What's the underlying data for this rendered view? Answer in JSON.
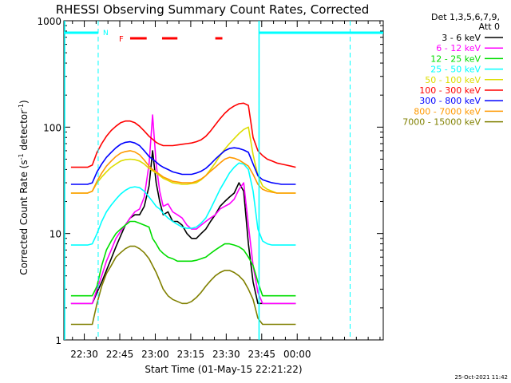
{
  "chart_data": {
    "type": "line",
    "title": "RHESSI Observing Summary Count Rates, Corrected",
    "xlabel": "Start Time (01-May-15 22:21:22)",
    "ylabel": "Corrected Count Rate (s",
    "ylabel_sup1": "-1",
    "ylabel_mid": " detector",
    "ylabel_sup2": "-1",
    "ylabel_end": ")",
    "yscale": "log",
    "ylim": [
      1,
      1000
    ],
    "xlim": [
      0,
      135
    ],
    "x_unit": "minutes since 22:21:22",
    "x_ticks": [
      {
        "label": "22:30",
        "x": 8.63
      },
      {
        "label": "22:45",
        "x": 23.63
      },
      {
        "label": "23:00",
        "x": 38.63
      },
      {
        "label": "23:15",
        "x": 53.63
      },
      {
        "label": "23:30",
        "x": 68.63
      },
      {
        "label": "23:45",
        "x": 83.63
      },
      {
        "label": "00:00",
        "x": 98.63
      }
    ],
    "y_ticks": [
      {
        "label": "1",
        "value": 1
      },
      {
        "label": "10",
        "value": 10
      },
      {
        "label": "100",
        "value": 100
      },
      {
        "label": "1000",
        "value": 1000
      }
    ],
    "legend_title_1": "Det 1,3,5,6,7,9,",
    "legend_title_2": "Att 0",
    "legend_position": "top-right",
    "series": [
      {
        "name": "3 - 6 keV",
        "color": "#000000",
        "x": [
          3,
          10,
          12,
          14,
          16,
          18,
          20,
          22,
          24,
          26,
          28,
          30,
          32,
          34,
          36,
          37.5,
          39,
          40.5,
          42,
          44,
          46,
          48,
          50,
          52,
          54,
          56,
          58,
          60,
          62,
          64,
          66,
          68,
          70,
          72,
          74,
          76,
          78,
          80,
          82,
          84,
          86,
          88,
          90,
          92,
          94,
          96,
          98
        ],
        "values": [
          2.2,
          2.2,
          2.2,
          2.8,
          3.5,
          4.5,
          5.8,
          7.5,
          9.5,
          12,
          14,
          15,
          15,
          18,
          28,
          60,
          30,
          20,
          15,
          16,
          13,
          13,
          12,
          10,
          9,
          9,
          10,
          11,
          13,
          15,
          18,
          20,
          22,
          24,
          30,
          25,
          8,
          3.5,
          2.2,
          2.2,
          2.2,
          2.2,
          2.2,
          2.2,
          2.2,
          2.2,
          2.2
        ]
      },
      {
        "name": "6 - 12 keV",
        "color": "#ff00ff",
        "x": [
          3,
          10,
          12,
          14,
          16,
          18,
          20,
          22,
          24,
          26,
          28,
          30,
          32,
          34,
          36,
          37.5,
          39,
          40.5,
          42,
          44,
          46,
          48,
          50,
          52,
          54,
          56,
          58,
          60,
          62,
          64,
          66,
          68,
          70,
          72,
          74,
          76,
          78,
          80,
          82,
          84,
          86,
          88,
          90,
          92,
          94,
          96,
          98
        ],
        "values": [
          2.2,
          2.2,
          2.2,
          3,
          4,
          5.5,
          7,
          9,
          10.5,
          12,
          14,
          16,
          17,
          22,
          45,
          130,
          45,
          25,
          18,
          19,
          16,
          15,
          14,
          12,
          11,
          11,
          12,
          13,
          14,
          15,
          17,
          18,
          19,
          21,
          26,
          30,
          12,
          5,
          2.8,
          2.2,
          2.2,
          2.2,
          2.2,
          2.2,
          2.2,
          2.2,
          2.2
        ]
      },
      {
        "name": "12 - 25 keV",
        "color": "#00dd00",
        "x": [
          3,
          10,
          12,
          14,
          16,
          18,
          20,
          22,
          24,
          26,
          28,
          30,
          32,
          34,
          36,
          37.5,
          39,
          40.5,
          42,
          44,
          46,
          48,
          50,
          52,
          54,
          56,
          58,
          60,
          62,
          64,
          66,
          68,
          70,
          72,
          74,
          76,
          78,
          80,
          82,
          84,
          86,
          88,
          90,
          92,
          94,
          96,
          98
        ],
        "values": [
          2.6,
          2.6,
          2.6,
          3.2,
          5,
          7,
          8.5,
          10,
          11,
          12,
          13,
          13,
          12.5,
          12,
          11.5,
          9,
          8,
          7,
          6.5,
          6,
          5.8,
          5.5,
          5.5,
          5.5,
          5.5,
          5.6,
          5.8,
          6,
          6.5,
          7,
          7.5,
          8,
          8,
          7.8,
          7.5,
          7,
          6,
          5,
          3.5,
          2.6,
          2.6,
          2.6,
          2.6,
          2.6,
          2.6,
          2.6,
          2.6
        ]
      },
      {
        "name": "25 - 50 keV",
        "color": "#00ffff",
        "x": [
          3,
          10,
          12,
          14,
          16,
          18,
          20,
          22,
          24,
          26,
          28,
          30,
          32,
          34,
          36,
          37.5,
          39,
          40.5,
          42,
          44,
          46,
          48,
          50,
          52,
          54,
          56,
          58,
          60,
          62,
          64,
          66,
          68,
          70,
          72,
          74,
          76,
          78,
          80,
          82,
          84,
          86,
          88,
          90,
          92,
          94,
          96,
          98
        ],
        "values": [
          7.8,
          7.8,
          8,
          10,
          13,
          16,
          18.5,
          21,
          23.5,
          25.5,
          27,
          27.5,
          27,
          25,
          22,
          20,
          18,
          17,
          15.5,
          14,
          13,
          12.2,
          11.5,
          11.2,
          11.2,
          11.5,
          12.5,
          14,
          17,
          21,
          26,
          31,
          37,
          42,
          46,
          45,
          40,
          25,
          11,
          8.5,
          8,
          7.8,
          7.8,
          7.8,
          7.8,
          7.8,
          7.8
        ]
      },
      {
        "name": "50 - 100 keV",
        "color": "#dddd00",
        "x": [
          3,
          10,
          12,
          14,
          16,
          18,
          20,
          22,
          24,
          26,
          28,
          30,
          32,
          34,
          36,
          37.5,
          39,
          40.5,
          42,
          44,
          46,
          48,
          50,
          52,
          54,
          56,
          58,
          60,
          62,
          64,
          66,
          68,
          70,
          72,
          74,
          76,
          78,
          80,
          82,
          84,
          86,
          88,
          90,
          92,
          94,
          96,
          98
        ],
        "values": [
          24,
          24,
          25,
          30,
          34,
          38,
          42,
          45,
          48,
          49.5,
          50,
          49.5,
          48,
          45,
          41,
          39,
          37,
          35,
          33,
          31.5,
          30,
          29.5,
          29,
          29,
          29.5,
          30,
          32,
          35,
          40,
          46,
          54,
          62,
          70,
          78,
          87,
          95,
          100,
          55,
          35,
          28,
          26,
          25,
          24,
          24,
          24,
          24,
          24
        ]
      },
      {
        "name": "100 - 300 keV",
        "color": "#ff0000",
        "x": [
          3,
          10,
          12,
          14,
          16,
          18,
          20,
          22,
          24,
          26,
          28,
          30,
          32,
          34,
          36,
          37.5,
          39,
          40.5,
          42,
          44,
          46,
          48,
          50,
          52,
          54,
          56,
          58,
          60,
          62,
          64,
          66,
          68,
          70,
          72,
          74,
          76,
          78,
          80,
          82,
          84,
          86,
          88,
          90,
          92,
          94,
          96,
          98
        ],
        "values": [
          42,
          42,
          44,
          58,
          70,
          82,
          93,
          102,
          110,
          114,
          114,
          110,
          102,
          92,
          82,
          77,
          72,
          69,
          67,
          67,
          67,
          68,
          69,
          70,
          71,
          73,
          76,
          82,
          92,
          105,
          120,
          135,
          148,
          158,
          166,
          168,
          160,
          80,
          60,
          54,
          50,
          48,
          46,
          45,
          44,
          43,
          42
        ]
      },
      {
        "name": "300 - 800 keV",
        "color": "#0000ff",
        "x": [
          3,
          10,
          12,
          14,
          16,
          18,
          20,
          22,
          24,
          26,
          28,
          30,
          32,
          34,
          36,
          37.5,
          39,
          40.5,
          42,
          44,
          46,
          48,
          50,
          52,
          54,
          56,
          58,
          60,
          62,
          64,
          66,
          68,
          70,
          72,
          74,
          76,
          78,
          80,
          82,
          84,
          86,
          88,
          90,
          92,
          94,
          96,
          98
        ],
        "values": [
          29,
          29,
          30,
          38,
          45,
          52,
          58,
          64,
          69,
          72,
          73,
          71,
          67,
          60,
          53,
          50,
          47,
          44,
          42,
          40,
          38,
          37,
          36,
          36,
          36,
          37,
          38.5,
          41,
          45,
          50,
          55,
          60,
          63,
          64,
          63,
          61,
          58,
          45,
          35,
          32,
          31,
          30,
          29.5,
          29,
          29,
          29,
          29
        ]
      },
      {
        "name": "800 - 7000 keV",
        "color": "#ff9900",
        "x": [
          3,
          10,
          12,
          14,
          16,
          18,
          20,
          22,
          24,
          26,
          28,
          30,
          32,
          34,
          36,
          37.5,
          39,
          40.5,
          42,
          44,
          46,
          48,
          50,
          52,
          54,
          56,
          58,
          60,
          62,
          64,
          66,
          68,
          70,
          72,
          74,
          76,
          78,
          80,
          82,
          84,
          86,
          88,
          90,
          92,
          94,
          96,
          98
        ],
        "values": [
          24,
          24,
          25,
          31,
          37,
          43,
          48,
          53,
          57,
          59,
          60,
          58.5,
          55,
          49,
          43,
          40,
          38,
          36,
          34,
          32.5,
          31,
          30.5,
          30,
          30,
          30,
          31,
          32.5,
          35,
          38.5,
          42,
          46,
          50,
          52,
          51,
          49,
          46,
          43,
          36,
          29,
          26,
          25,
          24.5,
          24,
          24,
          24,
          24,
          24
        ]
      },
      {
        "name": "7000 - 15000 keV",
        "color": "#808000",
        "x": [
          3,
          10,
          12,
          14,
          16,
          18,
          20,
          22,
          24,
          26,
          28,
          30,
          32,
          34,
          36,
          37.5,
          39,
          40.5,
          42,
          44,
          46,
          48,
          50,
          52,
          54,
          56,
          58,
          60,
          62,
          64,
          66,
          68,
          70,
          72,
          74,
          76,
          78,
          80,
          82,
          84,
          86,
          88,
          90,
          92,
          94,
          96,
          98
        ],
        "values": [
          1.4,
          1.4,
          1.4,
          2.2,
          3.2,
          4.2,
          5,
          6,
          6.6,
          7.2,
          7.6,
          7.6,
          7.2,
          6.6,
          5.8,
          5,
          4.3,
          3.6,
          3,
          2.6,
          2.4,
          2.3,
          2.2,
          2.2,
          2.3,
          2.5,
          2.8,
          3.2,
          3.6,
          4,
          4.3,
          4.5,
          4.5,
          4.3,
          4,
          3.6,
          3,
          2.4,
          1.6,
          1.4,
          1.4,
          1.4,
          1.4,
          1.4,
          1.4,
          1.4,
          1.4
        ]
      }
    ],
    "status_bars": {
      "night_label": "N",
      "flare_label": "F",
      "day_intervals": [
        [
          0,
          14.5
        ],
        [
          82.5,
          135
        ]
      ],
      "flare_intervals": [
        [
          28,
          35
        ],
        [
          41.5,
          48
        ],
        [
          64,
          67
        ]
      ],
      "day_color": "#00ffff",
      "flare_color": "#ff0000"
    },
    "markers": {
      "dashed_vertical_x": [
        14.5,
        82.5
      ],
      "solid_vertical_x": [
        82.5,
        0
      ]
    },
    "footer_date": "25-Oct-2021 11:42"
  }
}
